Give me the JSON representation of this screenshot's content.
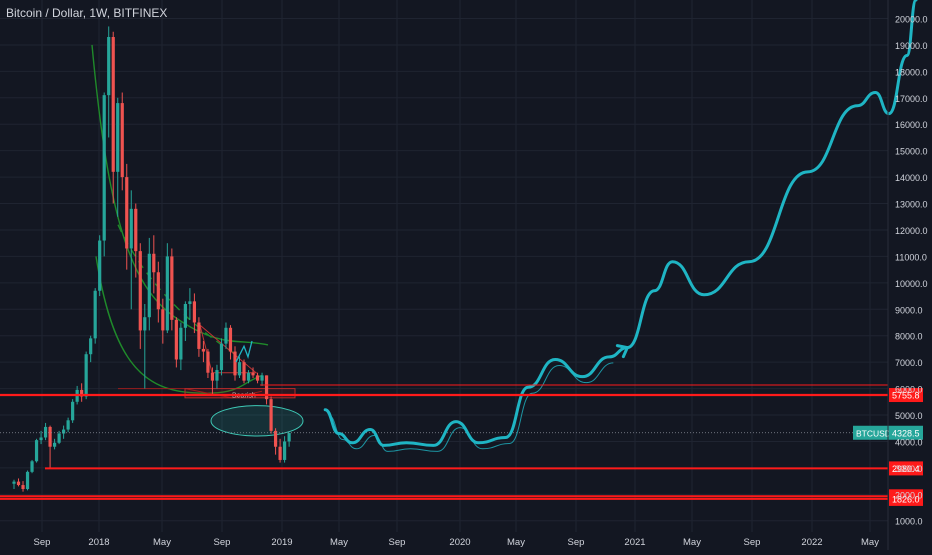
{
  "header": {
    "title": "Bitcoin / Dollar, 1W, BITFINEX"
  },
  "colors": {
    "background": "#131722",
    "grid": "#1f2431",
    "axis_text": "#d1d4dc",
    "up": "#26a69a",
    "down": "#ef5350",
    "drawing": "#1fb5c4",
    "level": "#ff1a1a",
    "arc": "#1f8a2a",
    "ticker_label": "#26a69a"
  },
  "chart_data": {
    "type": "candlestick",
    "title": "Bitcoin / Dollar, 1W, BITFINEX",
    "symbol": "BTCUSD",
    "last_price": 4328.5,
    "last_price_label": "4328.5",
    "x_ticks": [
      "Sep",
      "2018",
      "May",
      "Sep",
      "2019",
      "May",
      "Sep",
      "2020",
      "May",
      "Sep",
      "2021",
      "May",
      "Sep",
      "2022",
      "May"
    ],
    "y_ticks": [
      1000,
      2000,
      3000,
      4000,
      5000,
      6000,
      7000,
      8000,
      9000,
      10000,
      11000,
      12000,
      13000,
      14000,
      15000,
      16000,
      17000,
      18000,
      19000,
      20000
    ],
    "y_tick_labels": [
      "1000.0",
      "2000.0",
      "3000.0",
      "4000.0",
      "5000.0",
      "6000.0",
      "7000.0",
      "8000.0",
      "9000.0",
      "10000.0",
      "11000.0",
      "12000.0",
      "13000.0",
      "14000.0",
      "15000.0",
      "16000.0",
      "17000.0",
      "18000.0",
      "19000.0",
      "20000.0"
    ],
    "ylim": [
      650,
      20700
    ],
    "horizontal_levels": [
      {
        "value": 5755.8,
        "label": "5755.8"
      },
      {
        "value": 2980.4,
        "label": "2980.4"
      },
      {
        "value": 1924.6,
        "label": "1924.6"
      },
      {
        "value": 1826.0,
        "label": "1826.0"
      }
    ],
    "annotation_text": "Bearish",
    "candles_ohlc": [
      [
        2400,
        2550,
        2200,
        2480
      ],
      [
        2480,
        2600,
        2300,
        2350
      ],
      [
        2350,
        2500,
        2100,
        2200
      ],
      [
        2200,
        2900,
        2150,
        2850
      ],
      [
        2850,
        3300,
        2800,
        3250
      ],
      [
        3250,
        4100,
        3200,
        4050
      ],
      [
        4050,
        4400,
        3900,
        4150
      ],
      [
        4150,
        4700,
        4050,
        4550
      ],
      [
        4550,
        4600,
        3000,
        3800
      ],
      [
        3800,
        4100,
        3700,
        3950
      ],
      [
        3950,
        4400,
        3900,
        4300
      ],
      [
        4300,
        4600,
        4100,
        4450
      ],
      [
        4450,
        4900,
        4350,
        4800
      ],
      [
        4800,
        5600,
        4700,
        5500
      ],
      [
        5500,
        6100,
        5400,
        5950
      ],
      [
        5950,
        6200,
        5500,
        5700
      ],
      [
        5700,
        7400,
        5600,
        7300
      ],
      [
        7300,
        8000,
        7000,
        7900
      ],
      [
        7900,
        9800,
        7700,
        9700
      ],
      [
        9700,
        11800,
        9500,
        11600
      ],
      [
        11600,
        17200,
        11000,
        17100
      ],
      [
        17100,
        19700,
        15500,
        19300
      ],
      [
        19300,
        19500,
        13000,
        14200
      ],
      [
        14200,
        17000,
        12500,
        16800
      ],
      [
        16800,
        17200,
        13500,
        14000
      ],
      [
        14000,
        14500,
        10500,
        11300
      ],
      [
        11300,
        13500,
        9000,
        12800
      ],
      [
        12800,
        13000,
        10200,
        11200
      ],
      [
        11200,
        11500,
        7500,
        8200
      ],
      [
        8200,
        9200,
        6000,
        8700
      ],
      [
        8700,
        11700,
        8200,
        11100
      ],
      [
        11100,
        11800,
        9600,
        10400
      ],
      [
        10400,
        10800,
        8500,
        9000
      ],
      [
        9000,
        9400,
        7700,
        8200
      ],
      [
        8200,
        11500,
        8100,
        11000
      ],
      [
        11000,
        11300,
        8200,
        8600
      ],
      [
        8600,
        8700,
        6800,
        7100
      ],
      [
        7100,
        8500,
        6700,
        8300
      ],
      [
        8300,
        9300,
        7800,
        9200
      ],
      [
        9200,
        9800,
        8600,
        9300
      ],
      [
        9300,
        9600,
        8100,
        8500
      ],
      [
        8500,
        8700,
        7200,
        7500
      ],
      [
        7500,
        7800,
        7000,
        7400
      ],
      [
        7400,
        7500,
        6400,
        6600
      ],
      [
        6600,
        6800,
        5800,
        6300
      ],
      [
        6300,
        6900,
        6000,
        6700
      ],
      [
        6700,
        7900,
        6500,
        7700
      ],
      [
        7700,
        8500,
        7500,
        8300
      ],
      [
        8300,
        8400,
        7100,
        7400
      ],
      [
        7400,
        7600,
        6300,
        6500
      ],
      [
        6500,
        7200,
        6400,
        7000
      ],
      [
        7000,
        7100,
        6200,
        6300
      ],
      [
        6300,
        6700,
        6200,
        6600
      ],
      [
        6600,
        6800,
        6400,
        6500
      ],
      [
        6500,
        6600,
        6200,
        6300
      ],
      [
        6300,
        6600,
        6100,
        6500
      ],
      [
        6500,
        6500,
        5400,
        5600
      ],
      [
        5600,
        5700,
        4300,
        4400
      ],
      [
        4400,
        4500,
        3500,
        3800
      ],
      [
        3800,
        4100,
        3200,
        3300
      ],
      [
        3300,
        4200,
        3200,
        4000
      ],
      [
        4000,
        4300,
        3800,
        4328.5
      ]
    ],
    "projection_path": [
      [
        "2018-11-19",
        5200
      ],
      [
        "2018-12-10",
        4300
      ],
      [
        "2018-12-31",
        3950
      ],
      [
        "2019-01-28",
        4450
      ],
      [
        "2019-02-18",
        3850
      ],
      [
        "2019-03-25",
        3950
      ],
      [
        "2019-05-06",
        3850
      ],
      [
        "2019-06-10",
        4750
      ],
      [
        "2019-07-15",
        3950
      ],
      [
        "2019-08-26",
        4150
      ],
      [
        "2019-09-30",
        6050
      ],
      [
        "2019-11-11",
        7100
      ],
      [
        "2019-12-23",
        6450
      ],
      [
        "2020-02-03",
        7200
      ],
      [
        "2020-03-02",
        7550
      ],
      [
        "2020-04-13",
        9700
      ],
      [
        "2020-05-11",
        10800
      ],
      [
        "2020-06-29",
        9550
      ],
      [
        "2020-09-07",
        10800
      ],
      [
        "2020-12-07",
        14200
      ],
      [
        "2021-02-22",
        16700
      ],
      [
        "2021-03-22",
        17200
      ],
      [
        "2021-04-12",
        16400
      ],
      [
        "2021-05-10",
        18600
      ],
      [
        "2021-05-24",
        20700
      ]
    ],
    "grid": true,
    "legend": "none"
  }
}
